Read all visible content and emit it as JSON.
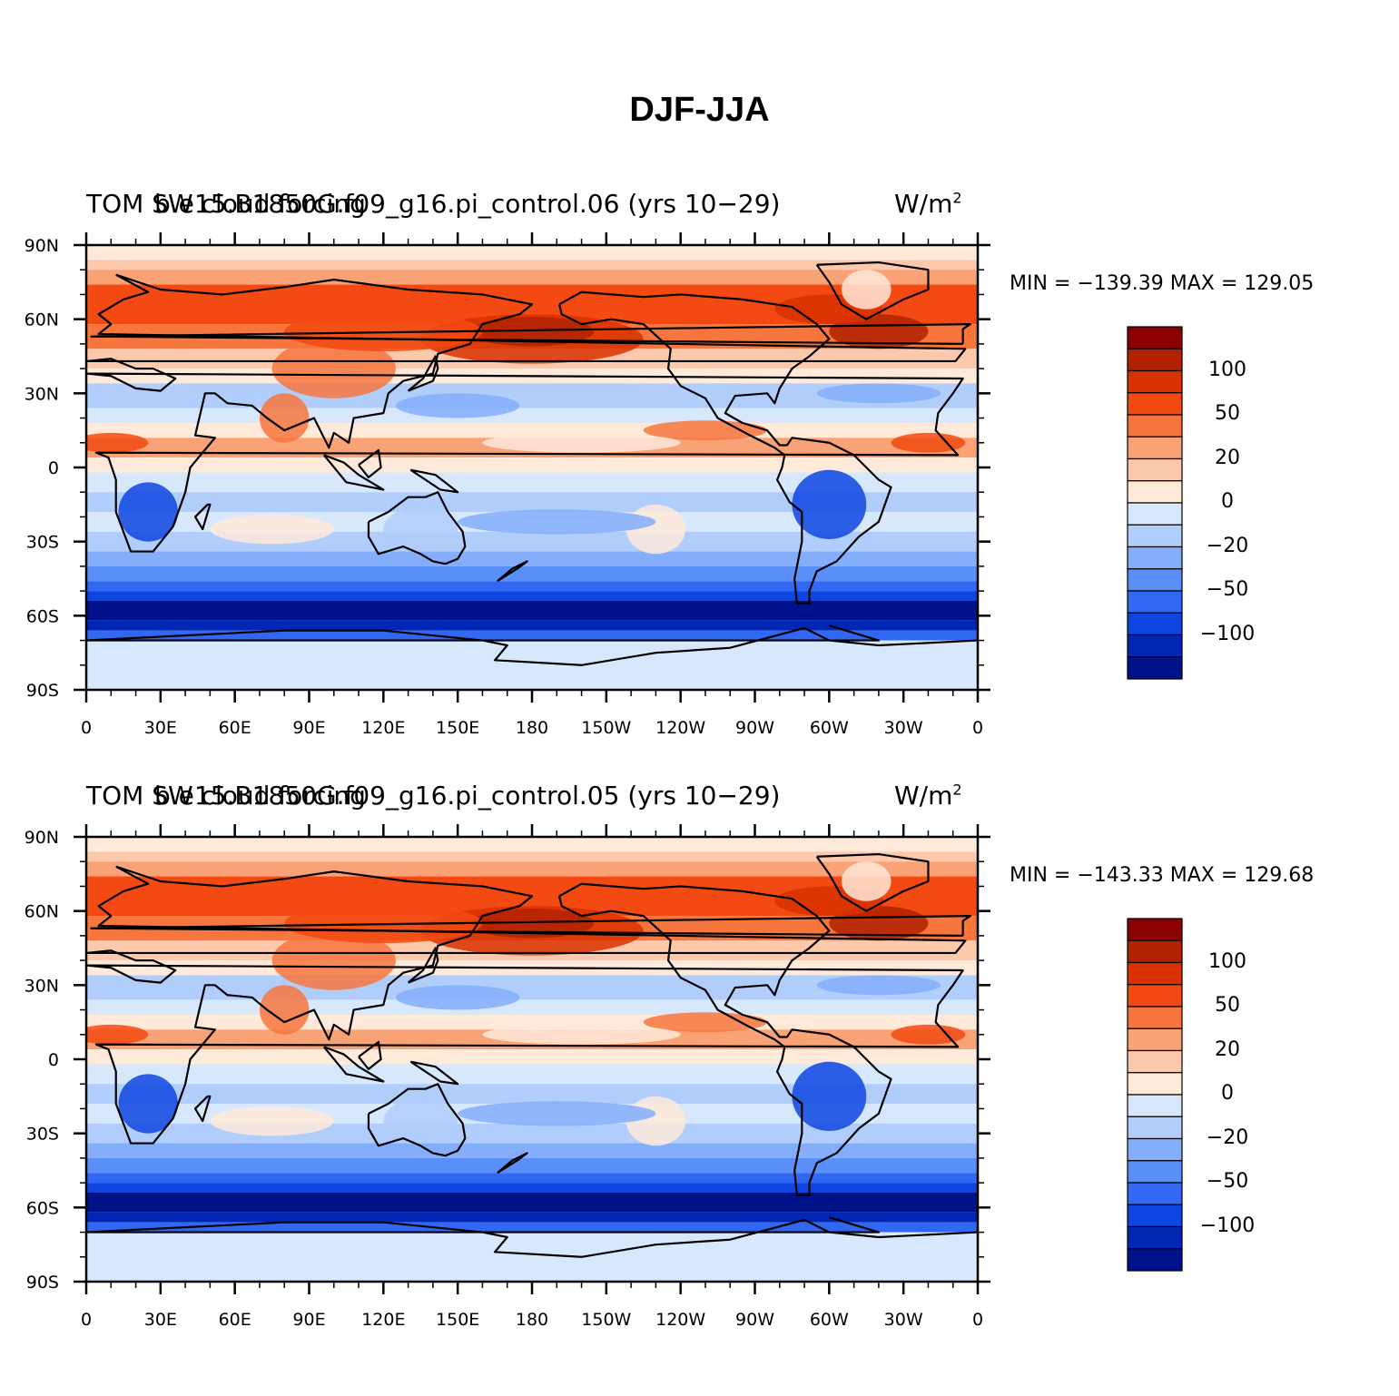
{
  "title": "DJF-JJA",
  "units_label": "W/m",
  "units_exp": "2",
  "lat_ticks": [
    "90N",
    "60N",
    "30N",
    "0",
    "30S",
    "60S",
    "90S"
  ],
  "lon_ticks": [
    "0",
    "30E",
    "60E",
    "90E",
    "120E",
    "150E",
    "180",
    "150W",
    "120W",
    "90W",
    "60W",
    "30W",
    "0"
  ],
  "colorbar": {
    "colors": [
      "#8b0000",
      "#b22200",
      "#d93100",
      "#f24a12",
      "#f7763e",
      "#f9a276",
      "#fcc9ad",
      "#ffe9d9",
      "#d7e8fc",
      "#b0cdfc",
      "#84aefb",
      "#5a8ff8",
      "#3068f4",
      "#0e45e0",
      "#0027b4",
      "#00128a"
    ],
    "labels": [
      "100",
      "50",
      "20",
      "0",
      "−20",
      "−50",
      "−100"
    ]
  },
  "panels": [
    {
      "title_left": "TOM SW cloud forcing",
      "case": "b.e15.B1850G.f09_g16.pi_control.06 (yrs 10−29)",
      "min_max": "MIN = −139.39  MAX = 129.05"
    },
    {
      "title_left": "TOM SW cloud forcing",
      "case": "b.e15.B1850G.f09_g16.pi_control.05 (yrs 10−29)",
      "min_max": "MIN = −143.33  MAX = 129.68"
    }
  ]
}
